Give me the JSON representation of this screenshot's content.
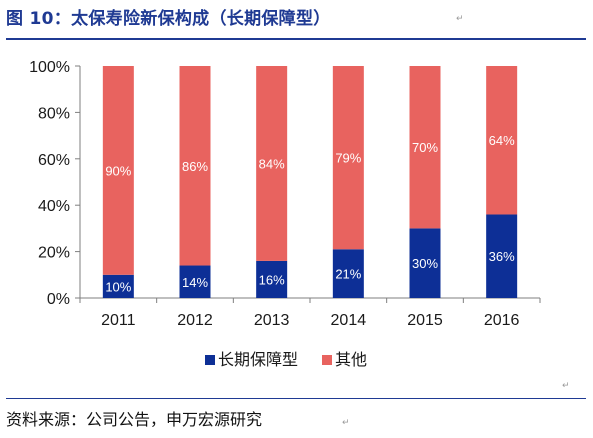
{
  "header": {
    "title": "图 10：太保寿险新保构成（长期保障型）"
  },
  "footer": {
    "source": "资料来源：公司公告，申万宏源研究"
  },
  "marks": {
    "paragraph": "↵"
  },
  "colors": {
    "accent": "#1f3a93",
    "long_term": "#0d2f96",
    "other": "#e8635f"
  },
  "chart_data": {
    "type": "bar",
    "stacked": true,
    "categories": [
      "2011",
      "2012",
      "2013",
      "2014",
      "2015",
      "2016"
    ],
    "series": [
      {
        "name": "长期保障型",
        "values": [
          10,
          14,
          16,
          21,
          30,
          36
        ],
        "labels": [
          "10%",
          "14%",
          "16%",
          "21%",
          "30%",
          "36%"
        ],
        "color": "#0d2f96"
      },
      {
        "name": "其他",
        "values": [
          90,
          86,
          84,
          79,
          70,
          64
        ],
        "labels": [
          "90%",
          "86%",
          "84%",
          "79%",
          "70%",
          "64%"
        ],
        "color": "#e8635f"
      }
    ],
    "ylim": [
      0,
      100
    ],
    "yticks": [
      0,
      20,
      40,
      60,
      80,
      100
    ],
    "yticklabels": [
      "0%",
      "20%",
      "40%",
      "60%",
      "80%",
      "100%"
    ],
    "xlabel": "",
    "ylabel": "",
    "grid": false,
    "legend_position": "bottom"
  }
}
